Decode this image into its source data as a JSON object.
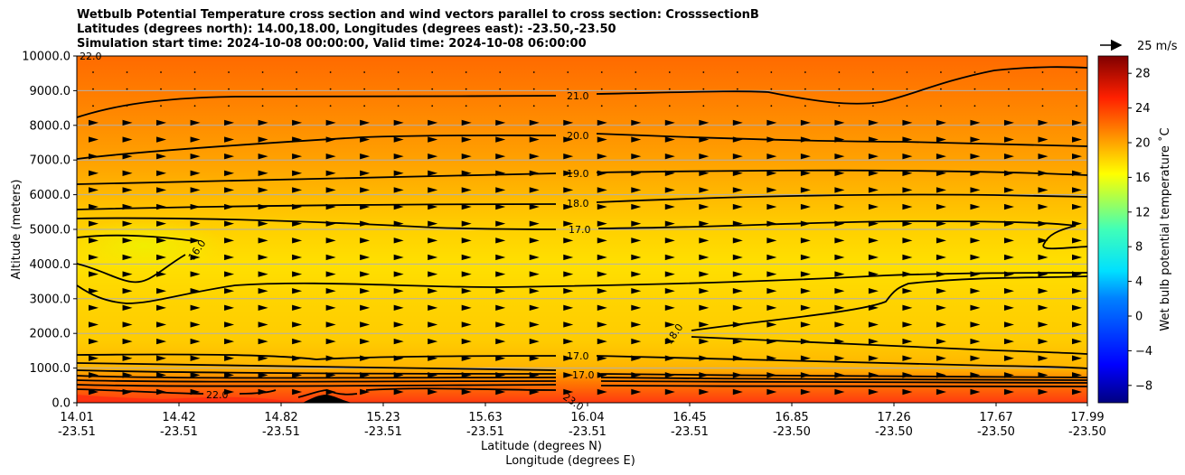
{
  "titles": {
    "line1": "Wetbulb Potential Temperature cross section and wind vectors parallel to cross section: CrosssectionB",
    "line2": "Latitudes (degrees north): 14.00,18.00, Longitudes (degrees east): -23.50,-23.50",
    "line3": "Simulation start time: 2024-10-08 00:00:00, Valid time: 2024-10-08 06:00:00"
  },
  "legend": {
    "vector_key": "25 m/s"
  },
  "chart_data": {
    "type": "heatmap",
    "ylabel": "Altitude (meters)",
    "xlabel_lat": "Latitude (degrees N)",
    "xlabel_lon": "Longitude (degrees E)",
    "ylim": [
      0,
      10000
    ],
    "y_ticks": [
      "0.0",
      "1000.0",
      "2000.0",
      "3000.0",
      "4000.0",
      "5000.0",
      "6000.0",
      "7000.0",
      "8000.0",
      "9000.0",
      "10000.0"
    ],
    "x_ticks": [
      {
        "lat": "14.01",
        "lon": "-23.51"
      },
      {
        "lat": "14.42",
        "lon": "-23.51"
      },
      {
        "lat": "14.82",
        "lon": "-23.51"
      },
      {
        "lat": "15.23",
        "lon": "-23.51"
      },
      {
        "lat": "15.63",
        "lon": "-23.51"
      },
      {
        "lat": "16.04",
        "lon": "-23.51"
      },
      {
        "lat": "16.45",
        "lon": "-23.51"
      },
      {
        "lat": "16.85",
        "lon": "-23.50"
      },
      {
        "lat": "17.26",
        "lon": "-23.50"
      },
      {
        "lat": "17.67",
        "lon": "-23.50"
      },
      {
        "lat": "17.99",
        "lon": "-23.50"
      }
    ],
    "colorbar": {
      "label": "Wet bulb potential temperature ˚C",
      "ticks": [
        "−8",
        "−4",
        "0",
        "4",
        "8",
        "12",
        "16",
        "20",
        "24",
        "28"
      ],
      "range": [
        -10,
        30
      ]
    },
    "contours": [
      {
        "label": "21.0",
        "altitude": 8800
      },
      {
        "label": "20.0",
        "altitude": 7700
      },
      {
        "label": "19.0",
        "altitude": 6600
      },
      {
        "label": "18.0",
        "altitude": 5800
      },
      {
        "label": "17.0",
        "altitude": 5000
      },
      {
        "label": "16.0",
        "altitude": 4300
      },
      {
        "label": "18.0",
        "altitude": 2000
      },
      {
        "label": "17.0",
        "altitude": 1350
      },
      {
        "label": "17.0",
        "altitude": 800
      },
      {
        "label": "22.0",
        "altitude": 200
      },
      {
        "label": "23.0",
        "altitude": 150
      },
      {
        "label": "22.0",
        "altitude": 9950
      }
    ],
    "grid": true
  }
}
